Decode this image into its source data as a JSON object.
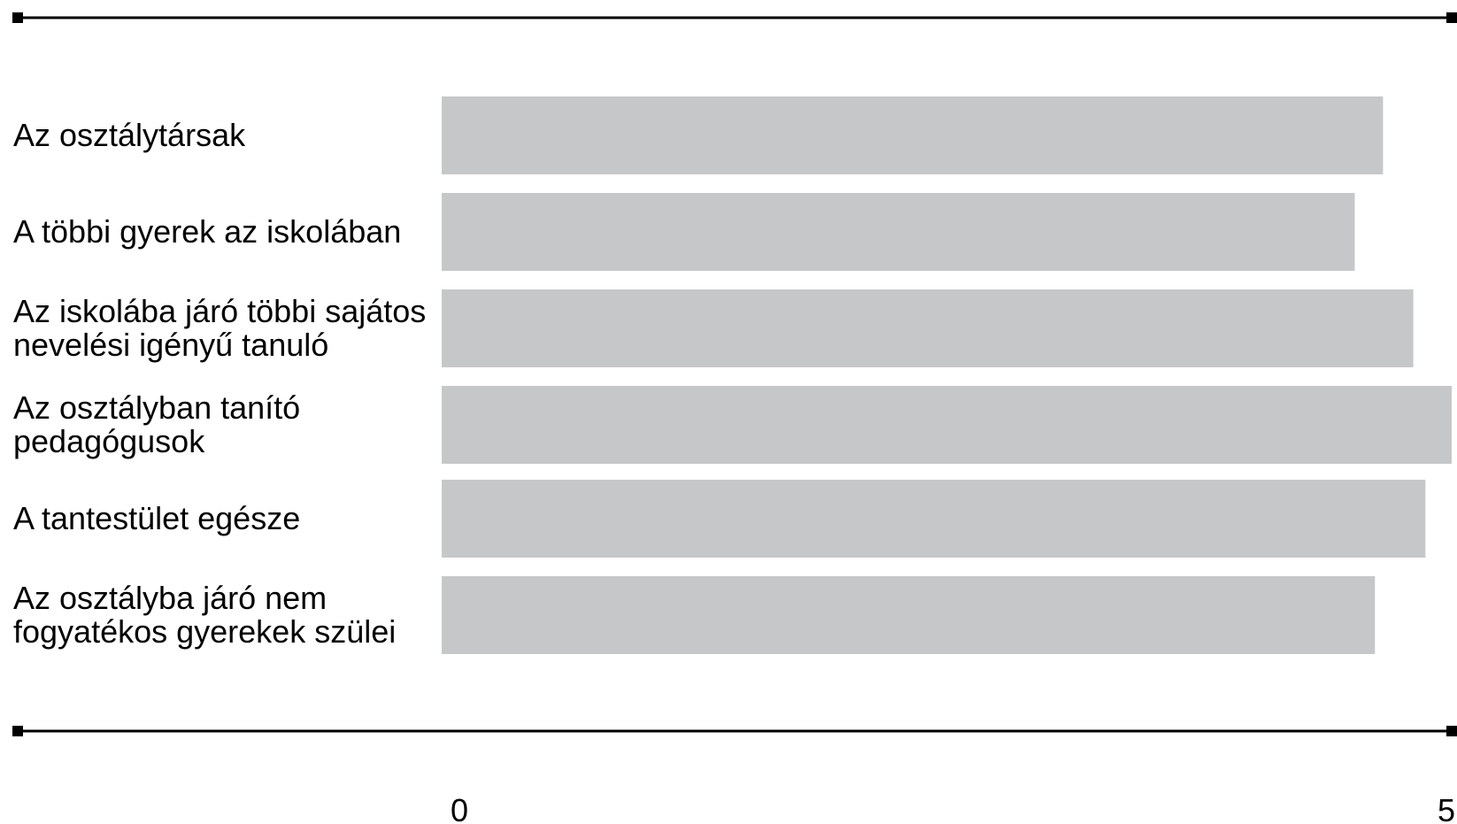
{
  "chart_data": {
    "type": "bar",
    "orientation": "horizontal",
    "categories": [
      [
        "Az osztálytársak"
      ],
      [
        "A többi gyerek az iskolában"
      ],
      [
        "Az iskolába járó többi sajátos",
        "nevelési igényű tanuló"
      ],
      [
        "Az osztályban tanító",
        "pedagógusok"
      ],
      [
        "A tantestület egésze"
      ],
      [
        "Az osztályba járó nem",
        "fogyatékos gyerekek szülei"
      ]
    ],
    "values": [
      4.66,
      4.52,
      4.81,
      5.0,
      4.87,
      4.62
    ],
    "xlim": [
      0,
      5
    ],
    "x_ticks": [
      "0",
      "5"
    ],
    "bar_color": "#c6c7c9",
    "grid": false,
    "title": "",
    "xlabel": "",
    "ylabel": ""
  }
}
